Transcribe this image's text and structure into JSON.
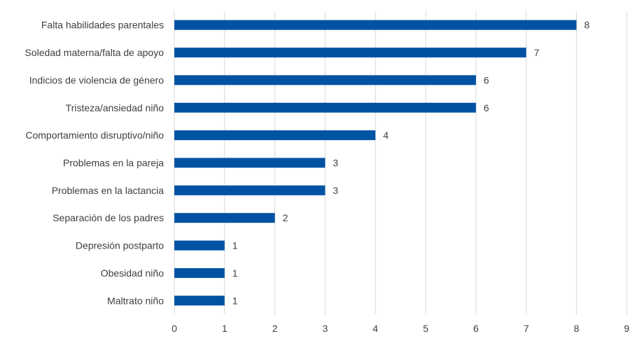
{
  "chart_data": {
    "type": "bar",
    "orientation": "horizontal",
    "categories": [
      "Falta habilidades parentales",
      "Soledad materna/falta de apoyo",
      "Indicios de violencia de género",
      "Tristeza/ansiedad niño",
      "Comportamiento disruptivo/niño",
      "Problemas en la pareja",
      "Problemas en la lactancia",
      "Separación de los padres",
      "Depresión postparto",
      "Obesidad niño",
      "Maltrato niño"
    ],
    "values": [
      8,
      7,
      6,
      6,
      4,
      3,
      3,
      2,
      1,
      1,
      1
    ],
    "xlim": [
      0,
      9
    ],
    "xticks": [
      "0",
      "1",
      "2",
      "3",
      "4",
      "5",
      "6",
      "7",
      "8",
      "9"
    ],
    "grid": true,
    "data_labels": true,
    "bar_color": "#0052A3",
    "grid_color": "#D9D9D9"
  }
}
